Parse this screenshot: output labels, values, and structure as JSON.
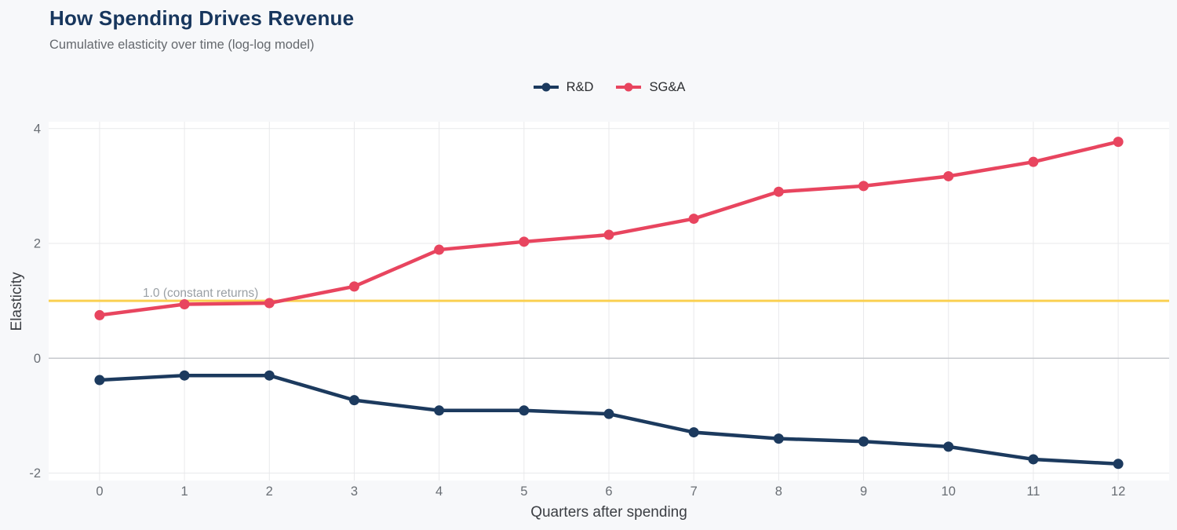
{
  "chart_data": {
    "type": "line",
    "title": "How Spending Drives Revenue",
    "subtitle": "Cumulative elasticity over time (log-log model)",
    "xlabel": "Quarters after spending",
    "ylabel": "Elasticity",
    "x": [
      0,
      1,
      2,
      3,
      4,
      5,
      6,
      7,
      8,
      9,
      10,
      11,
      12
    ],
    "xticks": [
      0,
      1,
      2,
      3,
      4,
      5,
      6,
      7,
      8,
      9,
      10,
      11,
      12
    ],
    "yticks": [
      -2,
      0,
      2,
      4
    ],
    "xlim": [
      -0.6,
      12.6
    ],
    "ylim": [
      -2.13,
      4.12
    ],
    "grid": true,
    "legend_position": "top-center",
    "series": [
      {
        "name": "R&D",
        "color": "#1c3a5e",
        "values": [
          -0.38,
          -0.3,
          -0.3,
          -0.73,
          -0.91,
          -0.91,
          -0.97,
          -1.29,
          -1.4,
          -1.45,
          -1.54,
          -1.76,
          -1.84
        ]
      },
      {
        "name": "SG&A",
        "color": "#e8455f",
        "values": [
          0.75,
          0.94,
          0.96,
          1.25,
          1.89,
          2.03,
          2.15,
          2.43,
          2.9,
          3.0,
          3.17,
          3.42,
          3.77
        ]
      }
    ],
    "reference_line": {
      "y": 1.0,
      "label": "1.0 (constant returns)",
      "color": "#fad052"
    },
    "colors": {
      "page_background": "#f7f8fa",
      "plot_background": "#ffffff",
      "gridline": "#e8e9eb",
      "zero_line": "#c6c9cd",
      "tick_label": "#696e74",
      "axis_title": "#3b3e43",
      "title": "#17365d",
      "subtitle": "#65696e",
      "annotation": "#9aa0a5",
      "legend_text": "#2b2d30"
    }
  }
}
